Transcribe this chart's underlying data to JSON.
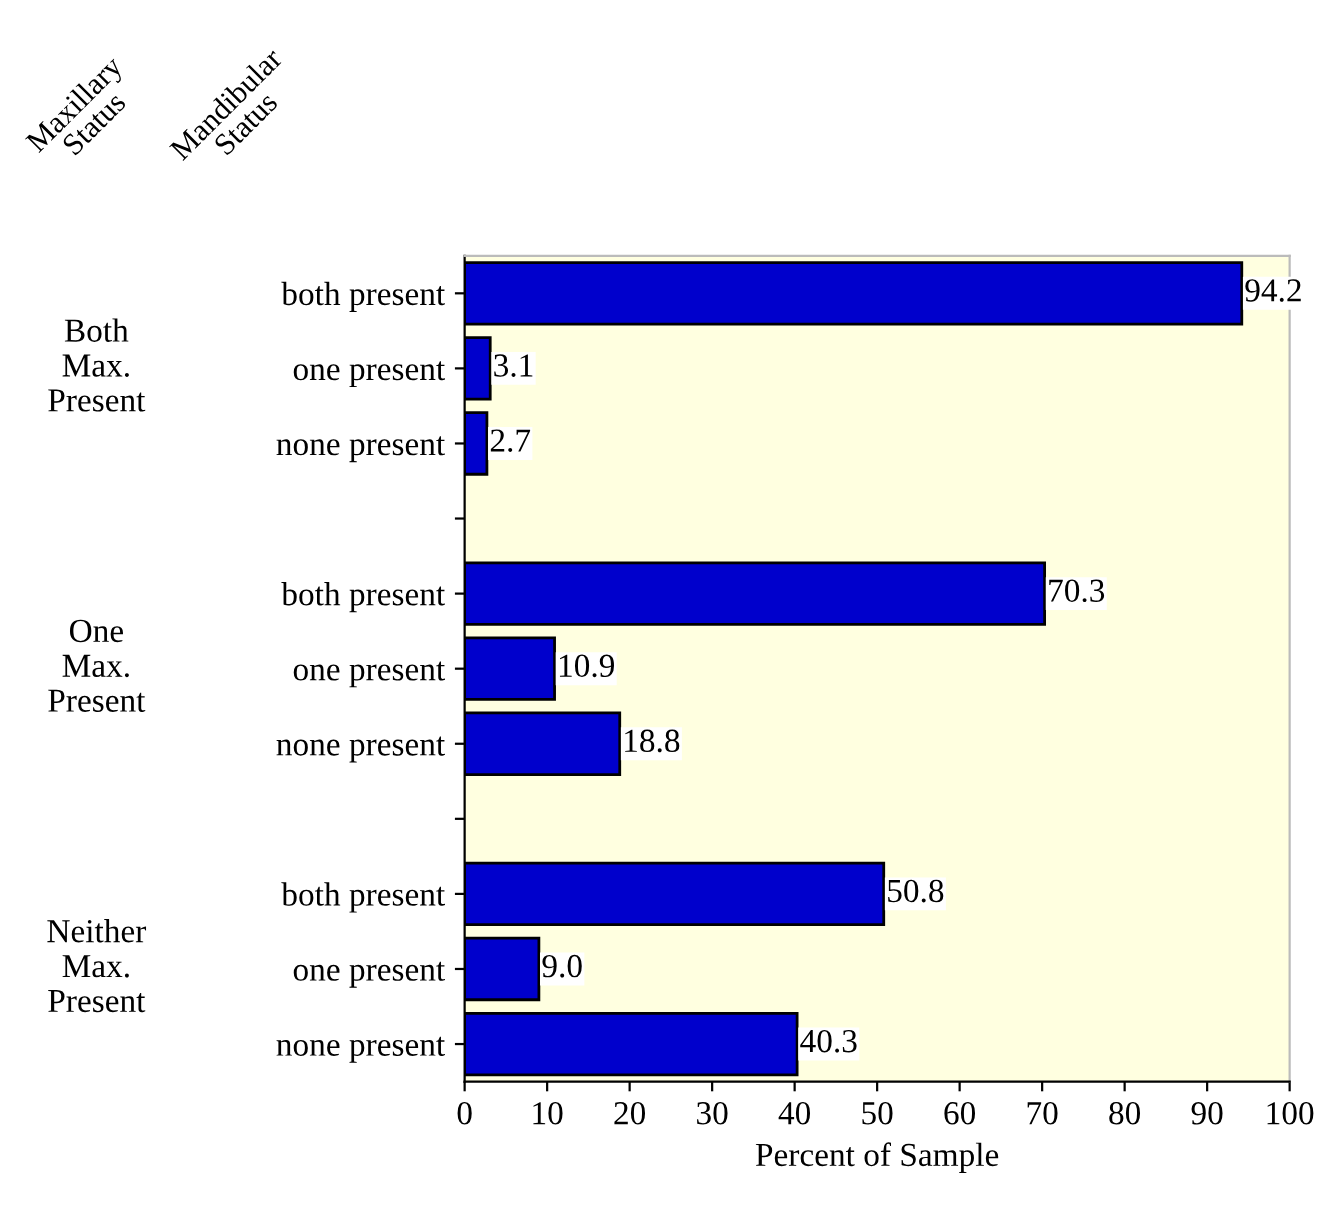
{
  "chart_data": {
    "type": "bar",
    "orientation": "horizontal",
    "categories": [
      "both present",
      "one present",
      "none present",
      null,
      "both present",
      "one present",
      "none present",
      null,
      "both present",
      "one present",
      "none present"
    ],
    "series": [
      {
        "color": "#0000cc",
        "values": [
          94.2,
          3.1,
          2.7,
          null,
          70.3,
          10.9,
          18.8,
          null,
          50.8,
          9.0,
          40.3
        ],
        "value_labels": [
          "94.2",
          "3.1",
          "2.7",
          null,
          "70.3",
          "10.9",
          "18.8",
          null,
          "50.8",
          "9.0",
          "40.3"
        ]
      }
    ],
    "xlabel": "Percent of Sample",
    "xlim": [
      0,
      100
    ],
    "xticks": [
      0,
      10,
      20,
      30,
      40,
      50,
      60,
      70,
      80,
      90,
      100
    ],
    "annotations": [
      "Maxillary\nStatus",
      "Mandibular\nStatus",
      "Both\nMax.\nPresent",
      "One\nMax.\nPresent",
      "Neither\nMax.\nPresent"
    ],
    "grid": false,
    "legend": false
  }
}
